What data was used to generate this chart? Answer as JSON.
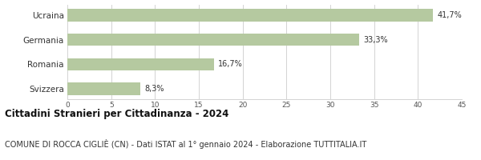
{
  "categories": [
    "Svizzera",
    "Romania",
    "Germania",
    "Ucraina"
  ],
  "values": [
    8.3,
    16.7,
    33.3,
    41.7
  ],
  "labels": [
    "8,3%",
    "16,7%",
    "33,3%",
    "41,7%"
  ],
  "bar_color": "#b5c9a0",
  "xlim": [
    0,
    45
  ],
  "xticks": [
    0,
    5,
    10,
    15,
    20,
    25,
    30,
    35,
    40,
    45
  ],
  "title": "Cittadini Stranieri per Cittadinanza - 2024",
  "subtitle": "COMUNE DI ROCCA CIGLIÈ (CN) - Dati ISTAT al 1° gennaio 2024 - Elaborazione TUTTITALIA.IT",
  "title_fontsize": 8.5,
  "subtitle_fontsize": 7.0,
  "label_fontsize": 7.0,
  "tick_fontsize": 6.5,
  "ylabel_fontsize": 7.5,
  "background_color": "#ffffff",
  "grid_color": "#cccccc",
  "bar_height": 0.5
}
